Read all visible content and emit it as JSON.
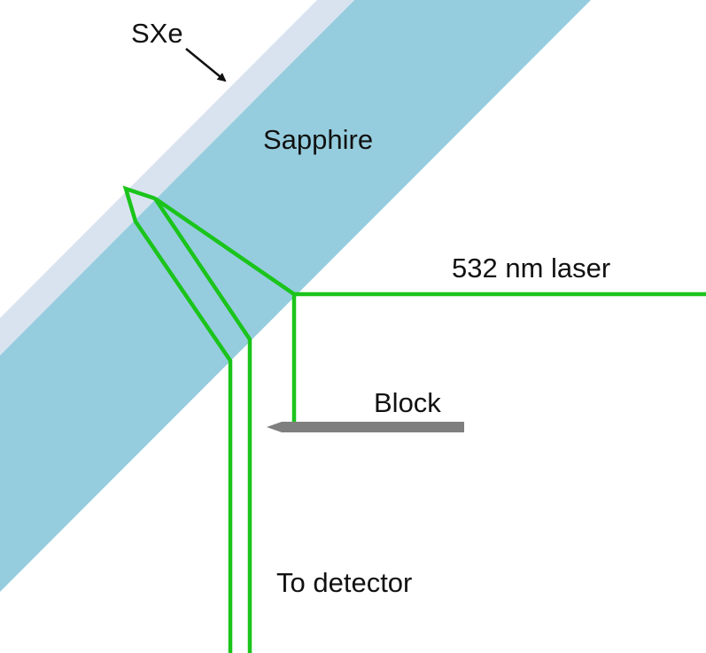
{
  "labels": {
    "sxe": "SXe",
    "sapphire": "Sapphire",
    "laser": "532 nm laser",
    "block": "Block",
    "detector": "To detector"
  },
  "colors": {
    "sapphire": "#95CDDE",
    "sxe_layer": "#D9E3F0",
    "beam": "#1BC41B",
    "block": "#7F7F7F",
    "text": "#111111",
    "background": "#FFFFFF"
  }
}
